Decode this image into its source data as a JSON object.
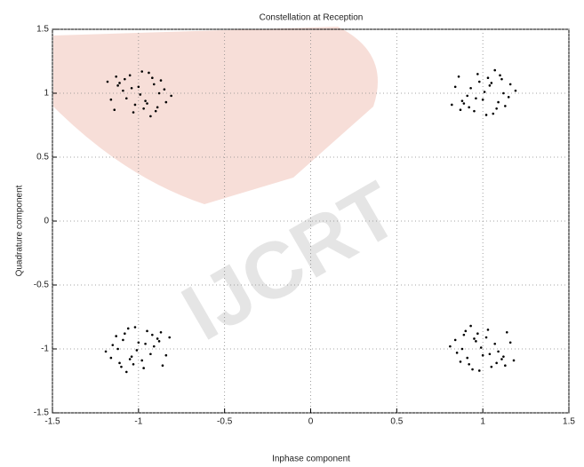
{
  "chart_data": {
    "type": "scatter",
    "title": "Constellation at Reception",
    "x_label": "Inphase component",
    "y_label": "Quadrature component",
    "watermark": "IJCRT",
    "color": "#000000",
    "grid": true,
    "xlim": [
      -1.5,
      1.5
    ],
    "ylim": [
      -1.5,
      1.5
    ],
    "xticks": [
      -1.5,
      -1,
      -0.5,
      0,
      0.5,
      1,
      1.5
    ],
    "yticks": [
      -1.5,
      -1,
      -0.5,
      0,
      0.5,
      1,
      1.5
    ],
    "x": [
      -0.95,
      -1.12,
      -0.92,
      -1.03,
      -0.85,
      -1.07,
      -0.98,
      -1.18,
      -0.89,
      -1.09,
      -0.96,
      -0.87,
      -1.14,
      -1,
      -0.93,
      -1.05,
      -0.81,
      -1.11,
      -0.91,
      -1.02,
      -0.94,
      -1.16,
      -0.88,
      -1.08,
      -0.97,
      -0.84,
      -1.04,
      -0.9,
      -1.13,
      -0.99,
      1.05,
      0.88,
      1.08,
      0.97,
      1.15,
      0.93,
      1.02,
      0.82,
      1.11,
      0.91,
      1.04,
      1.13,
      0.86,
      1,
      1.07,
      0.95,
      1.19,
      0.89,
      1.09,
      0.98,
      1.06,
      0.84,
      1.12,
      0.92,
      1.03,
      1.16,
      0.96,
      1.1,
      0.87,
      1.01,
      -1.05,
      -0.88,
      -1.08,
      -0.97,
      -1.15,
      -0.93,
      -1.02,
      -0.82,
      -1.11,
      -0.91,
      -1.04,
      -1.13,
      -0.86,
      -1,
      -1.07,
      -0.95,
      -1.19,
      -0.89,
      -1.09,
      -0.98,
      -1.06,
      -0.84,
      -1.12,
      -0.92,
      -1.03,
      -1.16,
      -0.96,
      -1.1,
      -0.87,
      -1.01,
      0.95,
      1.12,
      0.92,
      1.03,
      0.85,
      1.07,
      0.98,
      1.18,
      0.89,
      1.09,
      0.96,
      0.87,
      1.14,
      1,
      0.93,
      1.05,
      0.81,
      1.11,
      0.91,
      1.02,
      0.94,
      1.16,
      0.88,
      1.08,
      0.97,
      0.84,
      1.04,
      0.9,
      1.13,
      0.99
    ],
    "values": [
      0.92,
      1.06,
      1.12,
      0.85,
      1.03,
      0.96,
      1.17,
      1.09,
      0.89,
      1.02,
      0.94,
      1.1,
      0.87,
      1.05,
      0.82,
      1.14,
      0.98,
      1.08,
      1.07,
      0.91,
      1.16,
      0.95,
      1,
      1.11,
      0.88,
      0.93,
      1.04,
      0.86,
      1.13,
      0.99,
      1.08,
      0.94,
      0.88,
      1.15,
      0.97,
      1.04,
      0.83,
      0.91,
      1.11,
      0.98,
      1.06,
      0.9,
      1.13,
      0.95,
      1.18,
      0.86,
      1.02,
      0.92,
      0.93,
      1.09,
      0.84,
      1.05,
      1,
      0.89,
      1.12,
      1.07,
      0.96,
      1.14,
      0.87,
      1.01,
      -1.08,
      -0.94,
      -0.88,
      -1.15,
      -0.97,
      -1.04,
      -0.83,
      -0.91,
      -1.11,
      -0.98,
      -1.06,
      -0.9,
      -1.13,
      -0.95,
      -1.18,
      -0.86,
      -1.02,
      -0.92,
      -0.93,
      -1.09,
      -0.84,
      -1.05,
      -1,
      -0.89,
      -1.12,
      -1.07,
      -0.96,
      -1.14,
      -0.87,
      -1.01,
      -0.92,
      -1.06,
      -1.12,
      -0.85,
      -1.03,
      -0.96,
      -1.17,
      -1.09,
      -0.89,
      -1.02,
      -0.94,
      -1.1,
      -0.87,
      -1.05,
      -0.82,
      -1.14,
      -0.98,
      -1.08,
      -1.07,
      -0.91,
      -1.16,
      -0.95,
      -1,
      -1.11,
      -0.88,
      -0.93,
      -1.04,
      -0.86,
      -1.13,
      -0.99
    ]
  }
}
